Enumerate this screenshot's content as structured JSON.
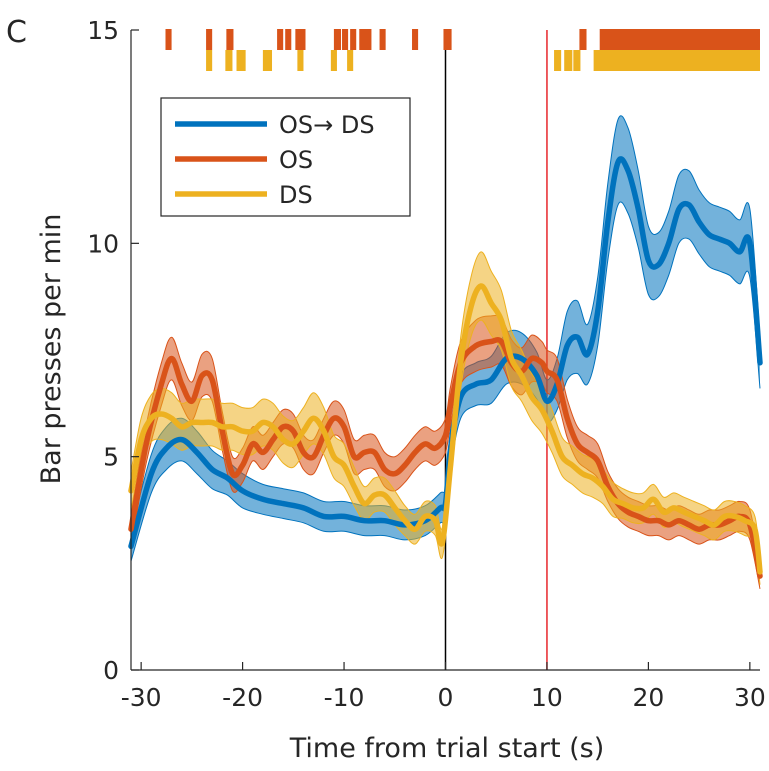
{
  "panel_label": "C",
  "chart_data": {
    "type": "line",
    "title": "",
    "xlabel": "Time from trial start (s)",
    "ylabel": "Bar presses per min",
    "xlim": [
      -31,
      31
    ],
    "ylim": [
      0,
      15
    ],
    "xticks": [
      -30,
      -20,
      -10,
      0,
      10,
      20,
      30
    ],
    "yticks": [
      0,
      5,
      10,
      15
    ],
    "x_tick_labels": [
      "-30",
      "-20",
      "-10",
      "0",
      "10",
      "20",
      "30"
    ],
    "y_tick_labels": [
      "0",
      "5",
      "10",
      "15"
    ],
    "grid": false,
    "legend_position": "top-left",
    "reference_lines": [
      {
        "x": 0,
        "color": "#000000"
      },
      {
        "x": 10,
        "color": "#e8262b"
      }
    ],
    "series": [
      {
        "name": "OS→ DS",
        "color": "#0072bd",
        "x": [
          -31,
          -29,
          -27.5,
          -26,
          -24.5,
          -23,
          -21.5,
          -20,
          -18,
          -16,
          -14,
          -12,
          -10,
          -8,
          -6,
          -4,
          -2,
          -0.5,
          0,
          0.5,
          1.5,
          3,
          4.5,
          6,
          7.5,
          9,
          10,
          11,
          12,
          13,
          14,
          15,
          16,
          17,
          18,
          19,
          20,
          21,
          22,
          23,
          24,
          25,
          26,
          27,
          28,
          29,
          30,
          31
        ],
        "y": [
          2.9,
          4.6,
          5.2,
          5.4,
          5.1,
          4.7,
          4.5,
          4.2,
          4.0,
          3.9,
          3.8,
          3.6,
          3.6,
          3.5,
          3.5,
          3.4,
          3.5,
          3.8,
          3.9,
          5.2,
          6.4,
          6.7,
          6.8,
          7.3,
          7.3,
          6.9,
          6.3,
          6.7,
          7.6,
          7.8,
          7.4,
          8.4,
          10.5,
          11.9,
          11.7,
          10.8,
          9.6,
          9.5,
          10.0,
          10.8,
          10.9,
          10.5,
          10.2,
          10.1,
          10.0,
          9.8,
          10.0,
          7.2
        ],
        "band": [
          0.35,
          0.45,
          0.5,
          0.5,
          0.5,
          0.45,
          0.4,
          0.4,
          0.35,
          0.35,
          0.35,
          0.35,
          0.35,
          0.35,
          0.35,
          0.35,
          0.35,
          0.35,
          0.4,
          0.45,
          0.5,
          0.5,
          0.55,
          0.6,
          0.6,
          0.55,
          0.5,
          0.6,
          0.8,
          0.85,
          0.7,
          0.8,
          0.9,
          1.0,
          1.0,
          0.9,
          0.8,
          0.75,
          0.75,
          0.8,
          0.8,
          0.75,
          0.75,
          0.75,
          0.75,
          0.75,
          0.8,
          0.6
        ]
      },
      {
        "name": "OS",
        "color": "#d95319",
        "x": [
          -31,
          -29.5,
          -28,
          -27,
          -26,
          -25,
          -24,
          -23,
          -22,
          -21,
          -20,
          -19,
          -18,
          -17,
          -16,
          -15,
          -14,
          -13,
          -12,
          -11,
          -10,
          -9,
          -8,
          -7,
          -6,
          -5,
          -4,
          -3,
          -2,
          -1,
          0,
          0.5,
          1.5,
          3,
          4.5,
          5.5,
          6.5,
          7.5,
          8.5,
          9.5,
          10,
          11,
          12,
          13,
          14,
          15,
          16,
          17,
          18,
          19,
          20,
          21,
          22,
          23,
          24,
          25,
          26,
          27,
          28,
          29,
          30,
          31
        ],
        "y": [
          3.3,
          5.3,
          6.7,
          7.3,
          6.7,
          6.3,
          6.9,
          6.8,
          5.6,
          4.6,
          4.8,
          5.3,
          5.1,
          5.4,
          5.7,
          5.6,
          5.1,
          5.0,
          5.5,
          5.9,
          5.7,
          5.0,
          5.1,
          5.1,
          4.7,
          4.6,
          4.8,
          5.1,
          5.3,
          5.2,
          5.5,
          6.2,
          7.2,
          7.6,
          7.7,
          7.7,
          7.2,
          7.0,
          7.3,
          7.2,
          7.0,
          6.8,
          5.9,
          5.3,
          5.1,
          4.9,
          4.3,
          3.9,
          3.7,
          3.6,
          3.5,
          3.5,
          3.4,
          3.5,
          3.4,
          3.3,
          3.4,
          3.4,
          3.5,
          3.6,
          3.4,
          2.2
        ],
        "band": [
          0.4,
          0.45,
          0.5,
          0.5,
          0.5,
          0.45,
          0.5,
          0.5,
          0.45,
          0.4,
          0.4,
          0.4,
          0.4,
          0.4,
          0.4,
          0.4,
          0.4,
          0.4,
          0.4,
          0.4,
          0.4,
          0.4,
          0.4,
          0.4,
          0.4,
          0.4,
          0.4,
          0.4,
          0.4,
          0.4,
          0.4,
          0.45,
          0.5,
          0.6,
          0.6,
          0.55,
          0.55,
          0.55,
          0.55,
          0.5,
          0.5,
          0.5,
          0.45,
          0.4,
          0.4,
          0.4,
          0.35,
          0.35,
          0.35,
          0.35,
          0.35,
          0.35,
          0.35,
          0.35,
          0.35,
          0.35,
          0.35,
          0.35,
          0.35,
          0.35,
          0.35,
          0.3
        ]
      },
      {
        "name": "DS",
        "color": "#edb120",
        "x": [
          -31,
          -30,
          -29,
          -28,
          -27,
          -26,
          -25,
          -24,
          -23,
          -22,
          -21,
          -20,
          -19,
          -18,
          -17,
          -16,
          -15,
          -14,
          -13,
          -12,
          -11,
          -10,
          -9,
          -8,
          -7,
          -6,
          -5,
          -4,
          -3,
          -2,
          -1,
          -0.3,
          0.5,
          1.5,
          2.5,
          3.5,
          4.5,
          5.5,
          6.5,
          7.5,
          8.5,
          9.5,
          10.5,
          11.5,
          12.5,
          13.5,
          14.5,
          15.5,
          16.5,
          17.5,
          18.5,
          19.5,
          20.5,
          21.5,
          22.5,
          23.5,
          24.5,
          25.5,
          26.5,
          27.5,
          28.5,
          29.5,
          30.5,
          31
        ],
        "y": [
          4.2,
          5.4,
          5.9,
          6.0,
          5.9,
          5.7,
          5.8,
          5.8,
          5.8,
          5.7,
          5.7,
          5.6,
          5.6,
          5.8,
          5.7,
          5.4,
          5.3,
          5.6,
          5.9,
          5.6,
          5.0,
          4.8,
          4.3,
          3.9,
          4.1,
          4.1,
          3.8,
          3.5,
          3.3,
          3.6,
          3.5,
          3.0,
          4.8,
          7.2,
          8.5,
          9.0,
          8.6,
          8.2,
          7.3,
          6.9,
          6.4,
          6.1,
          5.6,
          5.0,
          4.8,
          4.6,
          4.5,
          4.3,
          4.0,
          3.9,
          3.8,
          3.8,
          4.0,
          3.7,
          3.8,
          3.7,
          3.6,
          3.5,
          3.4,
          3.6,
          3.6,
          3.5,
          3.3,
          2.3
        ],
        "band": [
          0.45,
          0.5,
          0.55,
          0.6,
          0.6,
          0.55,
          0.55,
          0.55,
          0.55,
          0.55,
          0.55,
          0.55,
          0.55,
          0.55,
          0.55,
          0.55,
          0.55,
          0.55,
          0.6,
          0.55,
          0.5,
          0.5,
          0.45,
          0.4,
          0.4,
          0.4,
          0.4,
          0.35,
          0.35,
          0.35,
          0.35,
          0.35,
          0.45,
          0.6,
          0.7,
          0.8,
          0.75,
          0.7,
          0.65,
          0.6,
          0.55,
          0.55,
          0.5,
          0.45,
          0.45,
          0.45,
          0.45,
          0.4,
          0.4,
          0.35,
          0.35,
          0.35,
          0.35,
          0.35,
          0.35,
          0.35,
          0.35,
          0.35,
          0.35,
          0.35,
          0.35,
          0.35,
          0.3,
          0.3
        ]
      }
    ],
    "significance_marks": [
      {
        "name": "OS",
        "color": "#d95319",
        "intervals": [
          [
            -27.6,
            -27.0
          ],
          [
            -23.6,
            -23.0
          ],
          [
            -21.6,
            -20.9
          ],
          [
            -16.6,
            -16.0
          ],
          [
            -15.8,
            -15.2
          ],
          [
            -14.8,
            -13.8
          ],
          [
            -11.0,
            -10.3
          ],
          [
            -10.2,
            -9.6
          ],
          [
            -9.4,
            -8.8
          ],
          [
            -8.5,
            -7.3
          ],
          [
            -6.5,
            -5.9
          ],
          [
            -3.3,
            -2.7
          ],
          [
            -0.2,
            0.6
          ],
          [
            13.2,
            13.9
          ],
          [
            15.2,
            31
          ]
        ]
      },
      {
        "name": "DS",
        "color": "#edb120",
        "intervals": [
          [
            -23.6,
            -23.0
          ],
          [
            -21.7,
            -21.0
          ],
          [
            -20.6,
            -19.7
          ],
          [
            -18.0,
            -17.1
          ],
          [
            -14.6,
            -14.0
          ],
          [
            -11.3,
            -10.7
          ],
          [
            -9.7,
            -9.1
          ],
          [
            10.7,
            11.4
          ],
          [
            11.7,
            12.5
          ],
          [
            12.6,
            13.3
          ],
          [
            14.6,
            31
          ]
        ]
      }
    ]
  }
}
